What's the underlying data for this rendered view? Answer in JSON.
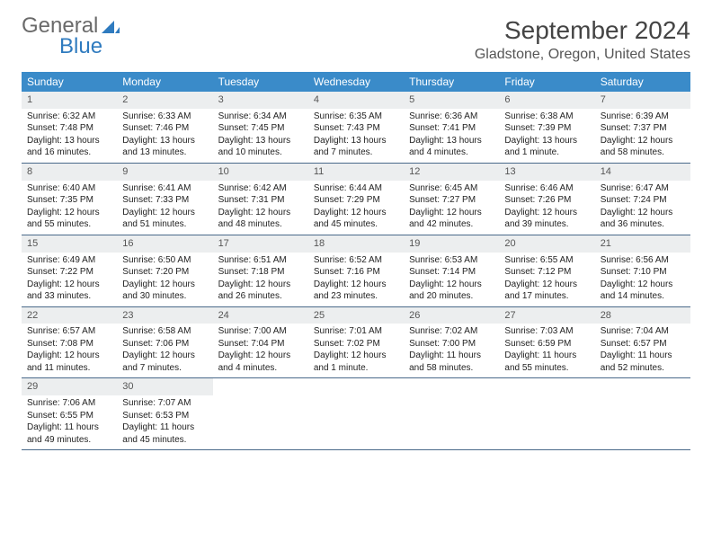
{
  "logo": {
    "text_gray": "General",
    "text_blue": "Blue"
  },
  "title": "September 2024",
  "location": "Gladstone, Oregon, United States",
  "colors": {
    "header_bg": "#3a8bc9",
    "header_text": "#ffffff",
    "daynum_bg": "#eceeef",
    "week_border": "#4a6a8a",
    "logo_gray": "#6a6a6a",
    "logo_blue": "#2f7bbf"
  },
  "day_names": [
    "Sunday",
    "Monday",
    "Tuesday",
    "Wednesday",
    "Thursday",
    "Friday",
    "Saturday"
  ],
  "weeks": [
    [
      {
        "n": "1",
        "sr": "Sunrise: 6:32 AM",
        "ss": "Sunset: 7:48 PM",
        "dl": "Daylight: 13 hours and 16 minutes."
      },
      {
        "n": "2",
        "sr": "Sunrise: 6:33 AM",
        "ss": "Sunset: 7:46 PM",
        "dl": "Daylight: 13 hours and 13 minutes."
      },
      {
        "n": "3",
        "sr": "Sunrise: 6:34 AM",
        "ss": "Sunset: 7:45 PM",
        "dl": "Daylight: 13 hours and 10 minutes."
      },
      {
        "n": "4",
        "sr": "Sunrise: 6:35 AM",
        "ss": "Sunset: 7:43 PM",
        "dl": "Daylight: 13 hours and 7 minutes."
      },
      {
        "n": "5",
        "sr": "Sunrise: 6:36 AM",
        "ss": "Sunset: 7:41 PM",
        "dl": "Daylight: 13 hours and 4 minutes."
      },
      {
        "n": "6",
        "sr": "Sunrise: 6:38 AM",
        "ss": "Sunset: 7:39 PM",
        "dl": "Daylight: 13 hours and 1 minute."
      },
      {
        "n": "7",
        "sr": "Sunrise: 6:39 AM",
        "ss": "Sunset: 7:37 PM",
        "dl": "Daylight: 12 hours and 58 minutes."
      }
    ],
    [
      {
        "n": "8",
        "sr": "Sunrise: 6:40 AM",
        "ss": "Sunset: 7:35 PM",
        "dl": "Daylight: 12 hours and 55 minutes."
      },
      {
        "n": "9",
        "sr": "Sunrise: 6:41 AM",
        "ss": "Sunset: 7:33 PM",
        "dl": "Daylight: 12 hours and 51 minutes."
      },
      {
        "n": "10",
        "sr": "Sunrise: 6:42 AM",
        "ss": "Sunset: 7:31 PM",
        "dl": "Daylight: 12 hours and 48 minutes."
      },
      {
        "n": "11",
        "sr": "Sunrise: 6:44 AM",
        "ss": "Sunset: 7:29 PM",
        "dl": "Daylight: 12 hours and 45 minutes."
      },
      {
        "n": "12",
        "sr": "Sunrise: 6:45 AM",
        "ss": "Sunset: 7:27 PM",
        "dl": "Daylight: 12 hours and 42 minutes."
      },
      {
        "n": "13",
        "sr": "Sunrise: 6:46 AM",
        "ss": "Sunset: 7:26 PM",
        "dl": "Daylight: 12 hours and 39 minutes."
      },
      {
        "n": "14",
        "sr": "Sunrise: 6:47 AM",
        "ss": "Sunset: 7:24 PM",
        "dl": "Daylight: 12 hours and 36 minutes."
      }
    ],
    [
      {
        "n": "15",
        "sr": "Sunrise: 6:49 AM",
        "ss": "Sunset: 7:22 PM",
        "dl": "Daylight: 12 hours and 33 minutes."
      },
      {
        "n": "16",
        "sr": "Sunrise: 6:50 AM",
        "ss": "Sunset: 7:20 PM",
        "dl": "Daylight: 12 hours and 30 minutes."
      },
      {
        "n": "17",
        "sr": "Sunrise: 6:51 AM",
        "ss": "Sunset: 7:18 PM",
        "dl": "Daylight: 12 hours and 26 minutes."
      },
      {
        "n": "18",
        "sr": "Sunrise: 6:52 AM",
        "ss": "Sunset: 7:16 PM",
        "dl": "Daylight: 12 hours and 23 minutes."
      },
      {
        "n": "19",
        "sr": "Sunrise: 6:53 AM",
        "ss": "Sunset: 7:14 PM",
        "dl": "Daylight: 12 hours and 20 minutes."
      },
      {
        "n": "20",
        "sr": "Sunrise: 6:55 AM",
        "ss": "Sunset: 7:12 PM",
        "dl": "Daylight: 12 hours and 17 minutes."
      },
      {
        "n": "21",
        "sr": "Sunrise: 6:56 AM",
        "ss": "Sunset: 7:10 PM",
        "dl": "Daylight: 12 hours and 14 minutes."
      }
    ],
    [
      {
        "n": "22",
        "sr": "Sunrise: 6:57 AM",
        "ss": "Sunset: 7:08 PM",
        "dl": "Daylight: 12 hours and 11 minutes."
      },
      {
        "n": "23",
        "sr": "Sunrise: 6:58 AM",
        "ss": "Sunset: 7:06 PM",
        "dl": "Daylight: 12 hours and 7 minutes."
      },
      {
        "n": "24",
        "sr": "Sunrise: 7:00 AM",
        "ss": "Sunset: 7:04 PM",
        "dl": "Daylight: 12 hours and 4 minutes."
      },
      {
        "n": "25",
        "sr": "Sunrise: 7:01 AM",
        "ss": "Sunset: 7:02 PM",
        "dl": "Daylight: 12 hours and 1 minute."
      },
      {
        "n": "26",
        "sr": "Sunrise: 7:02 AM",
        "ss": "Sunset: 7:00 PM",
        "dl": "Daylight: 11 hours and 58 minutes."
      },
      {
        "n": "27",
        "sr": "Sunrise: 7:03 AM",
        "ss": "Sunset: 6:59 PM",
        "dl": "Daylight: 11 hours and 55 minutes."
      },
      {
        "n": "28",
        "sr": "Sunrise: 7:04 AM",
        "ss": "Sunset: 6:57 PM",
        "dl": "Daylight: 11 hours and 52 minutes."
      }
    ],
    [
      {
        "n": "29",
        "sr": "Sunrise: 7:06 AM",
        "ss": "Sunset: 6:55 PM",
        "dl": "Daylight: 11 hours and 49 minutes."
      },
      {
        "n": "30",
        "sr": "Sunrise: 7:07 AM",
        "ss": "Sunset: 6:53 PM",
        "dl": "Daylight: 11 hours and 45 minutes."
      },
      null,
      null,
      null,
      null,
      null
    ]
  ]
}
